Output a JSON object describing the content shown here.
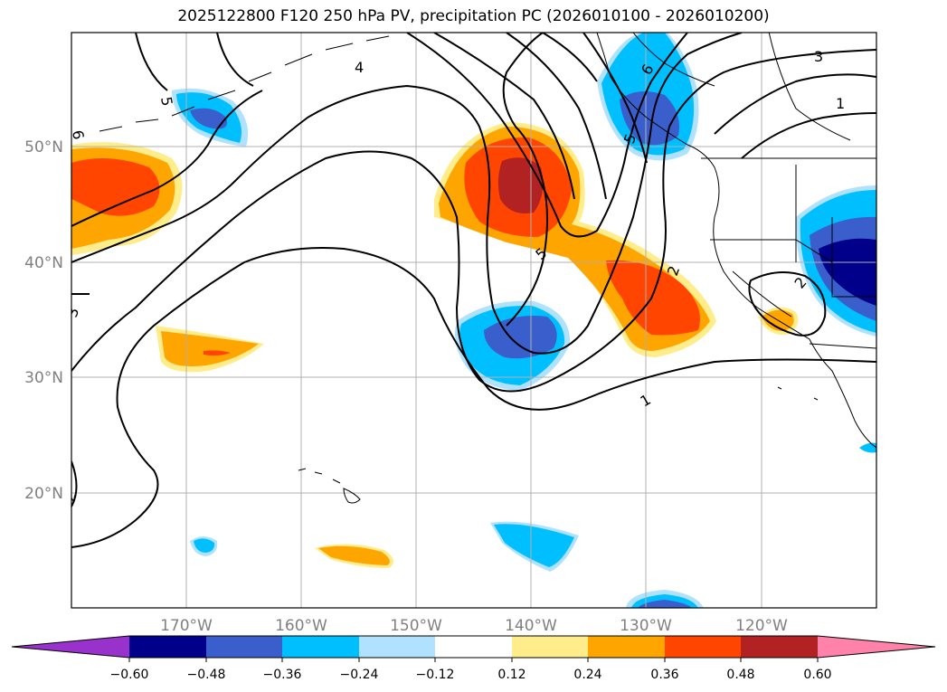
{
  "title": "2025122800 F120 250 hPa PV, precipitation PC (2026010100 - 2026010200)",
  "lat_labels": [
    "50°N",
    "40°N",
    "30°N",
    "20°N"
  ],
  "lon_labels": [
    "170°W",
    "160°W",
    "150°W",
    "140°W",
    "130°W",
    "120°W"
  ],
  "contour_labels": [
    "1",
    "2",
    "3",
    "4",
    "5",
    "6"
  ],
  "colorbar": {
    "tick_labels": [
      "−0.60",
      "−0.48",
      "−0.36",
      "−0.24",
      "−0.12",
      "0.12",
      "0.24",
      "0.36",
      "0.48",
      "0.60"
    ],
    "colors": [
      "#9932cc",
      "#00008b",
      "#3a5fcd",
      "#00bfff",
      "#b0e2ff",
      "#ffffff",
      "#ffec8b",
      "#ffa500",
      "#ff4500",
      "#b22222",
      "#ff82ab"
    ]
  },
  "colors": {
    "coast": "#000000",
    "grid": "#b0b0b0",
    "pv_contour": "#000000"
  }
}
